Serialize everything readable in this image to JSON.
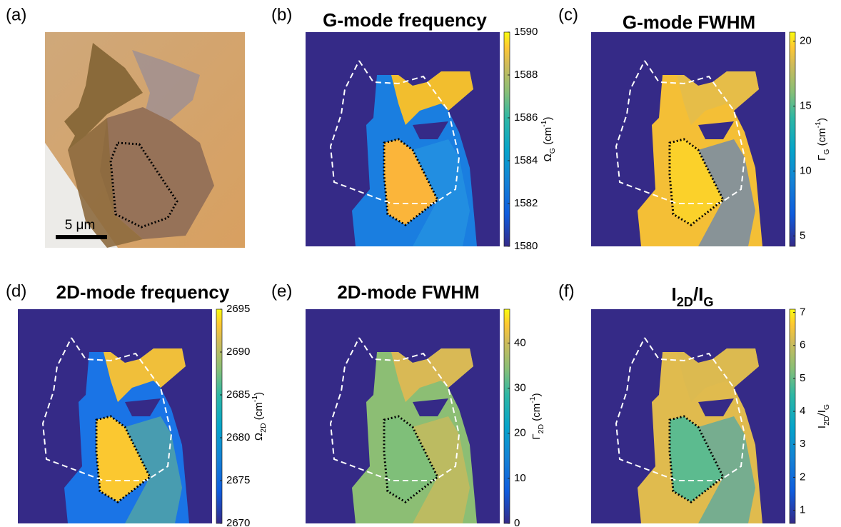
{
  "panels": [
    {
      "label": "(a)",
      "scale_bar": "5 μm"
    },
    {
      "label": "(b)",
      "title": [
        {
          "text": "G-mode frequency"
        }
      ],
      "colorbar": {
        "label": [
          {
            "text": "Ω"
          },
          {
            "text": "G",
            "sub": true
          },
          {
            "text": " (cm"
          },
          {
            "text": "-1",
            "sup": true
          },
          {
            "text": ")"
          }
        ],
        "lim": [
          1580,
          1590
        ],
        "ticks": [
          1580,
          1582,
          1584,
          1586,
          1588,
          1590
        ]
      }
    },
    {
      "label": "(c)",
      "title": [
        {
          "text": "G-mode FWHM"
        }
      ],
      "colorbar": {
        "label": [
          {
            "text": "Γ"
          },
          {
            "text": "G",
            "sub": true
          },
          {
            "text": " (cm"
          },
          {
            "text": "-1",
            "sup": true
          },
          {
            "text": ")"
          }
        ],
        "lim": [
          4.2,
          20.7
        ],
        "ticks": [
          5,
          10,
          15,
          20
        ]
      }
    },
    {
      "label": "(d)",
      "title": [
        {
          "text": "2D-mode frequency"
        }
      ],
      "colorbar": {
        "label": [
          {
            "text": "Ω"
          },
          {
            "text": "2D",
            "sub": true
          },
          {
            "text": " (cm"
          },
          {
            "text": "-1",
            "sup": true
          },
          {
            "text": ")"
          }
        ],
        "lim": [
          2670,
          2695
        ],
        "ticks": [
          2670,
          2675,
          2680,
          2685,
          2690,
          2695
        ]
      }
    },
    {
      "label": "(e)",
      "title": [
        {
          "text": "2D-mode FWHM"
        }
      ],
      "colorbar": {
        "label": [
          {
            "text": "Γ"
          },
          {
            "text": "2D",
            "sub": true
          },
          {
            "text": " (cm"
          },
          {
            "text": "-1",
            "sup": true
          },
          {
            "text": ")"
          }
        ],
        "lim": [
          0,
          47.5
        ],
        "ticks": [
          0,
          10,
          20,
          30,
          40
        ]
      }
    },
    {
      "label": "(f)",
      "title": [
        {
          "text": "I"
        },
        {
          "text": "2D",
          "sub": true
        },
        {
          "text": "/I"
        },
        {
          "text": "G",
          "sub": true
        }
      ],
      "colorbar": {
        "label": [
          {
            "text": "I"
          },
          {
            "text": "2D",
            "sub": true
          },
          {
            "text": "/I"
          },
          {
            "text": "G",
            "sub": true
          }
        ],
        "lim": [
          0.6,
          7.1
        ],
        "ticks": [
          1,
          2,
          3,
          4,
          5,
          6,
          7
        ]
      }
    }
  ]
}
